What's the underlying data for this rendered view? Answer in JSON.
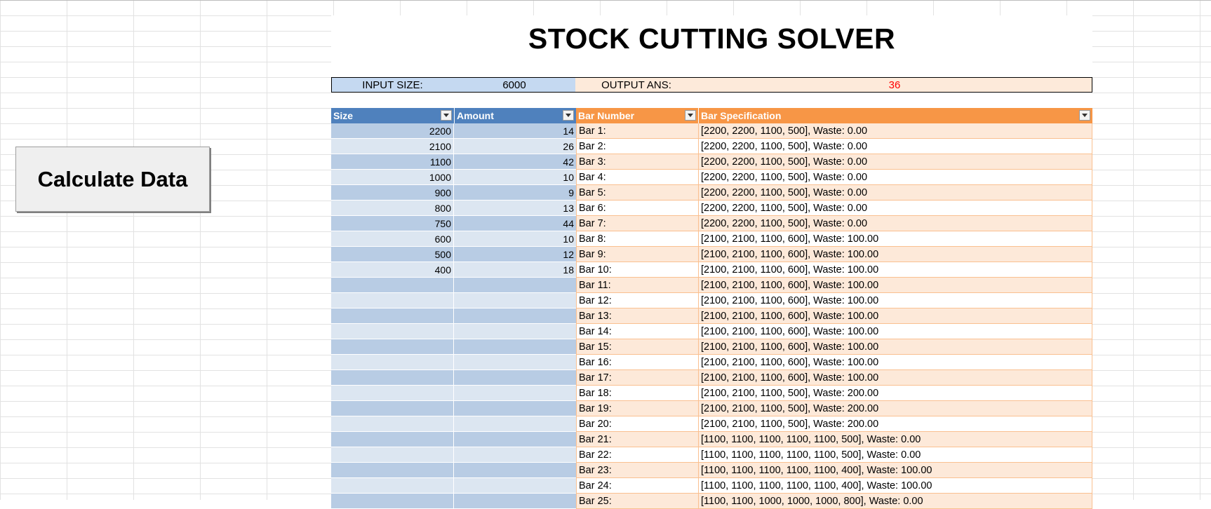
{
  "title": "STOCK CUTTING SOLVER",
  "io": {
    "input_label": "INPUT SIZE:",
    "input_value": "6000",
    "output_label": "OUTPUT ANS:",
    "output_value": "36"
  },
  "button": {
    "label": "Calculate Data"
  },
  "left_table": {
    "headers": {
      "size": "Size",
      "amount": "Amount"
    },
    "rows": [
      {
        "size": "2200",
        "amount": "14"
      },
      {
        "size": "2100",
        "amount": "26"
      },
      {
        "size": "1100",
        "amount": "42"
      },
      {
        "size": "1000",
        "amount": "10"
      },
      {
        "size": "900",
        "amount": "9"
      },
      {
        "size": "800",
        "amount": "13"
      },
      {
        "size": "750",
        "amount": "44"
      },
      {
        "size": "600",
        "amount": "10"
      },
      {
        "size": "500",
        "amount": "12"
      },
      {
        "size": "400",
        "amount": "18"
      },
      {
        "size": "",
        "amount": ""
      },
      {
        "size": "",
        "amount": ""
      },
      {
        "size": "",
        "amount": ""
      },
      {
        "size": "",
        "amount": ""
      },
      {
        "size": "",
        "amount": ""
      },
      {
        "size": "",
        "amount": ""
      },
      {
        "size": "",
        "amount": ""
      },
      {
        "size": "",
        "amount": ""
      },
      {
        "size": "",
        "amount": ""
      },
      {
        "size": "",
        "amount": ""
      },
      {
        "size": "",
        "amount": ""
      },
      {
        "size": "",
        "amount": ""
      },
      {
        "size": "",
        "amount": ""
      },
      {
        "size": "",
        "amount": ""
      },
      {
        "size": "",
        "amount": ""
      }
    ]
  },
  "right_table": {
    "headers": {
      "bar_number": "Bar Number",
      "bar_spec": "Bar Specification"
    },
    "rows": [
      {
        "bar": "Bar 1:",
        "spec": "[2200, 2200, 1100, 500], Waste: 0.00"
      },
      {
        "bar": "Bar 2:",
        "spec": "[2200, 2200, 1100, 500], Waste: 0.00"
      },
      {
        "bar": "Bar 3:",
        "spec": "[2200, 2200, 1100, 500], Waste: 0.00"
      },
      {
        "bar": "Bar 4:",
        "spec": "[2200, 2200, 1100, 500], Waste: 0.00"
      },
      {
        "bar": "Bar 5:",
        "spec": "[2200, 2200, 1100, 500], Waste: 0.00"
      },
      {
        "bar": "Bar 6:",
        "spec": "[2200, 2200, 1100, 500], Waste: 0.00"
      },
      {
        "bar": "Bar 7:",
        "spec": "[2200, 2200, 1100, 500], Waste: 0.00"
      },
      {
        "bar": "Bar 8:",
        "spec": "[2100, 2100, 1100, 600], Waste: 100.00"
      },
      {
        "bar": "Bar 9:",
        "spec": "[2100, 2100, 1100, 600], Waste: 100.00"
      },
      {
        "bar": "Bar 10:",
        "spec": "[2100, 2100, 1100, 600], Waste: 100.00"
      },
      {
        "bar": "Bar 11:",
        "spec": "[2100, 2100, 1100, 600], Waste: 100.00"
      },
      {
        "bar": "Bar 12:",
        "spec": "[2100, 2100, 1100, 600], Waste: 100.00"
      },
      {
        "bar": "Bar 13:",
        "spec": "[2100, 2100, 1100, 600], Waste: 100.00"
      },
      {
        "bar": "Bar 14:",
        "spec": "[2100, 2100, 1100, 600], Waste: 100.00"
      },
      {
        "bar": "Bar 15:",
        "spec": "[2100, 2100, 1100, 600], Waste: 100.00"
      },
      {
        "bar": "Bar 16:",
        "spec": "[2100, 2100, 1100, 600], Waste: 100.00"
      },
      {
        "bar": "Bar 17:",
        "spec": "[2100, 2100, 1100, 600], Waste: 100.00"
      },
      {
        "bar": "Bar 18:",
        "spec": "[2100, 2100, 1100, 500], Waste: 200.00"
      },
      {
        "bar": "Bar 19:",
        "spec": "[2100, 2100, 1100, 500], Waste: 200.00"
      },
      {
        "bar": "Bar 20:",
        "spec": "[2100, 2100, 1100, 500], Waste: 200.00"
      },
      {
        "bar": "Bar 21:",
        "spec": "[1100, 1100, 1100, 1100, 1100, 500], Waste: 0.00"
      },
      {
        "bar": "Bar 22:",
        "spec": "[1100, 1100, 1100, 1100, 1100, 500], Waste: 0.00"
      },
      {
        "bar": "Bar 23:",
        "spec": "[1100, 1100, 1100, 1100, 1100, 400], Waste: 100.00"
      },
      {
        "bar": "Bar 24:",
        "spec": "[1100, 1100, 1100, 1100, 1100, 400], Waste: 100.00"
      },
      {
        "bar": "Bar 25:",
        "spec": "[1100, 1100, 1000, 1000, 1000, 800], Waste: 0.00"
      }
    ]
  }
}
